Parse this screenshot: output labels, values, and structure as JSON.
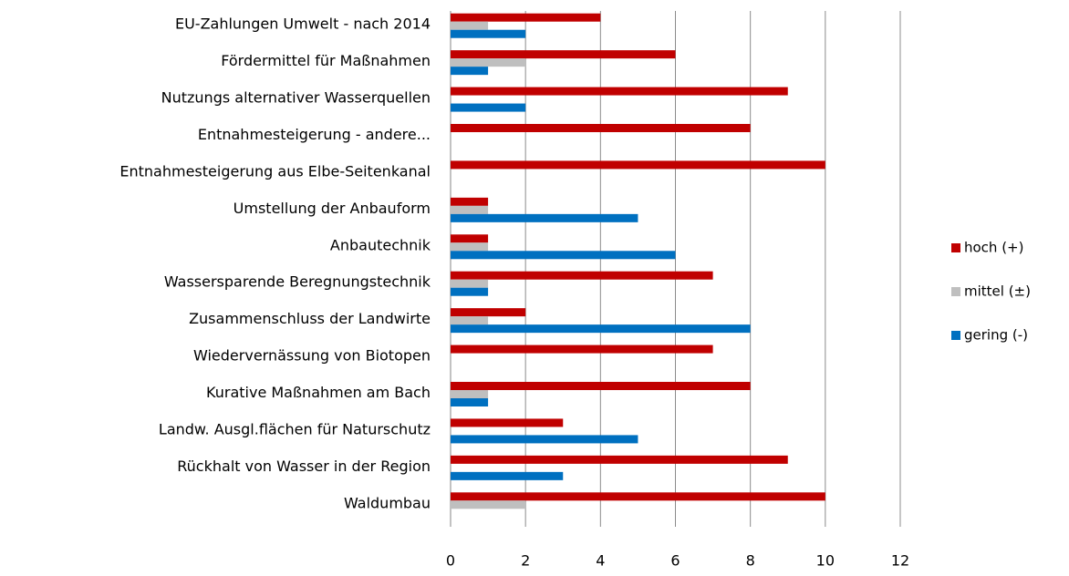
{
  "chart_data": {
    "type": "bar",
    "orientation": "horizontal",
    "categories": [
      "EU-Zahlungen Umwelt - nach 2014",
      "Fördermittel für Maßnahmen",
      "Nutzungs alternativer Wasserquellen",
      "Entnahmesteigerung - andere...",
      "Entnahmesteigerung aus Elbe-Seitenkanal",
      "Umstellung der Anbauform",
      "Anbautechnik",
      "Wassersparende Beregnungstechnik",
      "Zusammenschluss der Landwirte",
      "Wiedervernässung von Biotopen",
      "Kurative Maßnahmen am Bach",
      "Landw. Ausgl.flächen für Naturschutz",
      "Rückhalt von Wasser in der Region",
      "Waldumbau"
    ],
    "series": [
      {
        "name": "hoch (+)",
        "color": "#c00000",
        "values": [
          4,
          6,
          9,
          8,
          10,
          1,
          1,
          7,
          2,
          7,
          8,
          3,
          9,
          10
        ]
      },
      {
        "name": "mittel (±)",
        "color": "#bfbfbf",
        "values": [
          1,
          2,
          0,
          0,
          0,
          1,
          1,
          1,
          1,
          0,
          1,
          0,
          0,
          2
        ]
      },
      {
        "name": "gering (-)",
        "color": "#0070c0",
        "values": [
          2,
          1,
          2,
          0,
          0,
          5,
          6,
          1,
          8,
          0,
          1,
          5,
          3,
          0
        ]
      }
    ],
    "xlim": [
      0,
      12
    ],
    "xticks": [
      0,
      2,
      4,
      6,
      8,
      10,
      12
    ],
    "grid": true,
    "legend": "right"
  }
}
